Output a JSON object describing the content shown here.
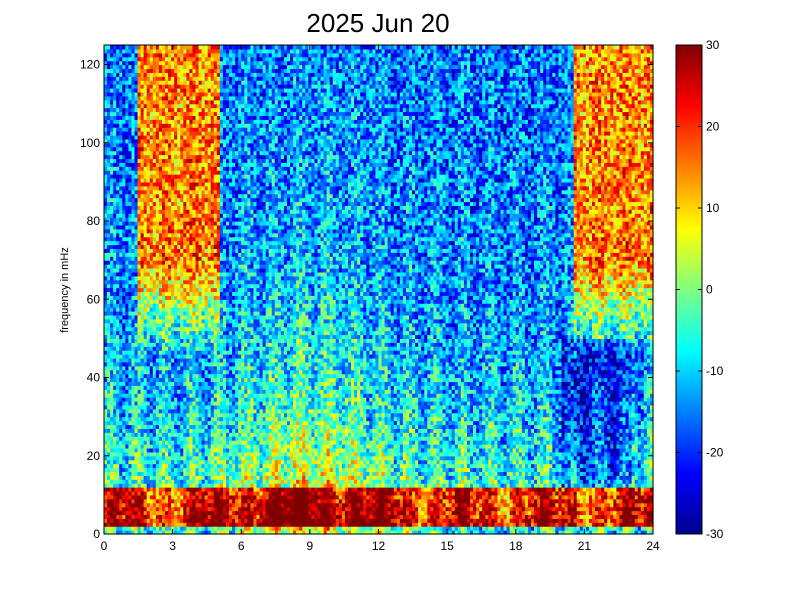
{
  "chart_data": {
    "type": "heatmap",
    "title": "2025 Jun 20",
    "xlabel": "",
    "ylabel": "frequency in mHz",
    "xlim": [
      0,
      24
    ],
    "ylim": [
      0,
      125
    ],
    "x_ticks": [
      0,
      3,
      6,
      9,
      12,
      15,
      18,
      21,
      24
    ],
    "y_ticks": [
      0,
      20,
      40,
      60,
      80,
      100,
      120
    ],
    "colorbar": {
      "colormap": "jet",
      "range": [
        -30,
        30
      ],
      "ticks": [
        -30,
        -20,
        -10,
        0,
        10,
        20,
        30
      ]
    },
    "time_bins": 180,
    "freq_bins": 125,
    "features": {
      "strong_band_mHz": [
        2,
        12
      ],
      "high_power_patches_hours": [
        [
          1.5,
          5
        ],
        [
          20.5,
          24
        ]
      ],
      "quiet_minimum_hours": [
        20,
        23
      ]
    }
  }
}
